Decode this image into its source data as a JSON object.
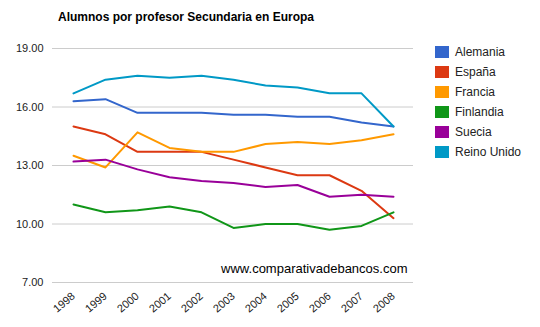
{
  "chart_data": {
    "type": "line",
    "title": "Alumnos por profesor Secundaria en Europa",
    "annotations": [
      "www.comparativadebancos.com"
    ],
    "x": [
      "1998",
      "1999",
      "2000",
      "2001",
      "2002",
      "2003",
      "2004",
      "2005",
      "2006",
      "2007",
      "2008"
    ],
    "series": [
      {
        "name": "Alemania",
        "color": "#3366cc",
        "values": [
          16.3,
          16.4,
          15.7,
          15.7,
          15.7,
          15.6,
          15.6,
          15.5,
          15.5,
          15.2,
          15.0
        ]
      },
      {
        "name": "España",
        "color": "#dc3912",
        "values": [
          15.0,
          14.6,
          13.7,
          13.7,
          13.7,
          13.3,
          12.9,
          12.5,
          12.5,
          11.7,
          10.3
        ]
      },
      {
        "name": "Francia",
        "color": "#ff9900",
        "values": [
          13.5,
          12.9,
          14.7,
          13.9,
          13.7,
          13.7,
          14.1,
          14.2,
          14.1,
          14.3,
          14.6
        ]
      },
      {
        "name": "Finlandia",
        "color": "#109618",
        "values": [
          11.0,
          10.6,
          10.7,
          10.9,
          10.6,
          9.8,
          10.0,
          10.0,
          9.7,
          9.9,
          10.6
        ]
      },
      {
        "name": "Suecia",
        "color": "#990099",
        "values": [
          13.2,
          13.3,
          12.8,
          12.4,
          12.2,
          12.1,
          11.9,
          12.0,
          11.4,
          11.5,
          11.4
        ]
      },
      {
        "name": "Reino Unido",
        "color": "#0099c6",
        "values": [
          16.7,
          17.4,
          17.6,
          17.5,
          17.6,
          17.4,
          17.1,
          17.0,
          16.7,
          16.7,
          15.0
        ]
      }
    ],
    "ylim": [
      7,
      19
    ],
    "yticks": [
      {
        "value": 7,
        "label": "7.00"
      },
      {
        "value": 10,
        "label": "10.00"
      },
      {
        "value": 13,
        "label": "13.00"
      },
      {
        "value": 16,
        "label": "16.00"
      },
      {
        "value": 19,
        "label": "19.00"
      }
    ],
    "grid": true,
    "legend": "right"
  }
}
